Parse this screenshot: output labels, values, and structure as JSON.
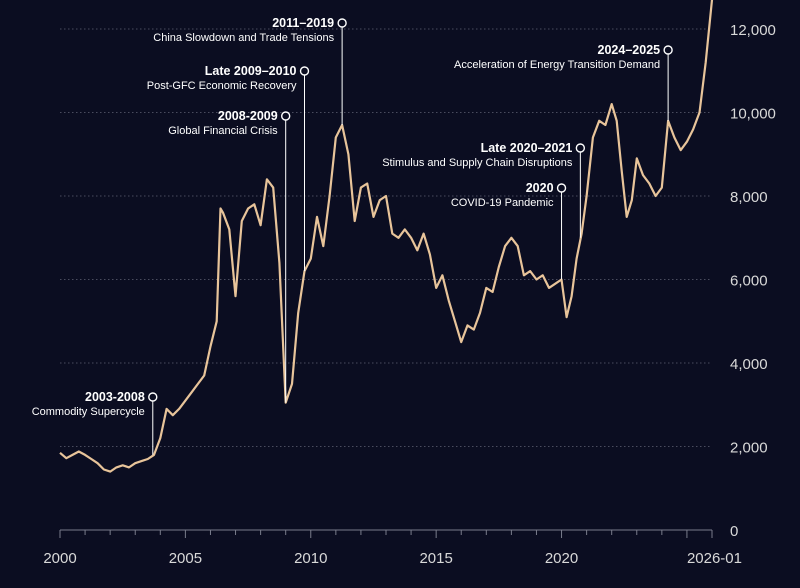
{
  "chart_data": {
    "type": "line",
    "title": "",
    "xlabel": "",
    "ylabel": "",
    "x_ticks": [
      "2000",
      "2005",
      "2010",
      "2015",
      "2020",
      "2026-01"
    ],
    "y_ticks": [
      "0",
      "2,000",
      "4,000",
      "6,000",
      "8,000",
      "10,000",
      "12,000"
    ],
    "xlim": [
      2000,
      2026.0
    ],
    "ylim": [
      0,
      12500
    ],
    "grid": true,
    "colors": {
      "background": "#0b0d21",
      "line": "#e8c49a",
      "grid": "#4a4c5e",
      "text": "#ffffff",
      "tick": "#d9d9d9"
    },
    "series": [
      {
        "points": [
          [
            2000.0,
            1850
          ],
          [
            2000.25,
            1720
          ],
          [
            2000.5,
            1800
          ],
          [
            2000.75,
            1880
          ],
          [
            2001.0,
            1800
          ],
          [
            2001.25,
            1700
          ],
          [
            2001.5,
            1600
          ],
          [
            2001.75,
            1450
          ],
          [
            2002.0,
            1400
          ],
          [
            2002.25,
            1500
          ],
          [
            2002.5,
            1550
          ],
          [
            2002.75,
            1500
          ],
          [
            2003.0,
            1600
          ],
          [
            2003.25,
            1650
          ],
          [
            2003.5,
            1700
          ],
          [
            2003.75,
            1800
          ],
          [
            2004.0,
            2200
          ],
          [
            2004.25,
            2900
          ],
          [
            2004.5,
            2750
          ],
          [
            2004.75,
            2900
          ],
          [
            2005.0,
            3100
          ],
          [
            2005.25,
            3300
          ],
          [
            2005.5,
            3500
          ],
          [
            2005.75,
            3700
          ],
          [
            2006.0,
            4400
          ],
          [
            2006.25,
            5000
          ],
          [
            2006.4,
            7700
          ],
          [
            2006.5,
            7600
          ],
          [
            2006.75,
            7200
          ],
          [
            2007.0,
            5600
          ],
          [
            2007.25,
            7400
          ],
          [
            2007.5,
            7700
          ],
          [
            2007.75,
            7800
          ],
          [
            2008.0,
            7300
          ],
          [
            2008.25,
            8400
          ],
          [
            2008.5,
            8200
          ],
          [
            2008.75,
            6400
          ],
          [
            2009.0,
            3050
          ],
          [
            2009.25,
            3500
          ],
          [
            2009.5,
            5200
          ],
          [
            2009.75,
            6200
          ],
          [
            2010.0,
            6500
          ],
          [
            2010.25,
            7500
          ],
          [
            2010.5,
            6800
          ],
          [
            2010.75,
            8000
          ],
          [
            2011.0,
            9400
          ],
          [
            2011.25,
            9700
          ],
          [
            2011.5,
            9000
          ],
          [
            2011.75,
            7400
          ],
          [
            2012.0,
            8200
          ],
          [
            2012.25,
            8300
          ],
          [
            2012.5,
            7500
          ],
          [
            2012.75,
            7900
          ],
          [
            2013.0,
            8000
          ],
          [
            2013.25,
            7100
          ],
          [
            2013.5,
            7000
          ],
          [
            2013.75,
            7200
          ],
          [
            2014.0,
            7000
          ],
          [
            2014.25,
            6700
          ],
          [
            2014.5,
            7100
          ],
          [
            2014.75,
            6600
          ],
          [
            2015.0,
            5800
          ],
          [
            2015.25,
            6100
          ],
          [
            2015.5,
            5500
          ],
          [
            2015.75,
            5000
          ],
          [
            2016.0,
            4500
          ],
          [
            2016.25,
            4900
          ],
          [
            2016.5,
            4800
          ],
          [
            2016.75,
            5200
          ],
          [
            2017.0,
            5800
          ],
          [
            2017.25,
            5700
          ],
          [
            2017.5,
            6300
          ],
          [
            2017.75,
            6800
          ],
          [
            2018.0,
            7000
          ],
          [
            2018.25,
            6800
          ],
          [
            2018.5,
            6100
          ],
          [
            2018.75,
            6200
          ],
          [
            2019.0,
            6000
          ],
          [
            2019.25,
            6100
          ],
          [
            2019.5,
            5800
          ],
          [
            2019.75,
            5900
          ],
          [
            2020.0,
            6000
          ],
          [
            2020.2,
            5100
          ],
          [
            2020.4,
            5600
          ],
          [
            2020.6,
            6500
          ],
          [
            2020.8,
            7100
          ],
          [
            2021.0,
            8000
          ],
          [
            2021.25,
            9400
          ],
          [
            2021.5,
            9800
          ],
          [
            2021.75,
            9700
          ],
          [
            2022.0,
            10200
          ],
          [
            2022.2,
            9800
          ],
          [
            2022.4,
            8600
          ],
          [
            2022.6,
            7500
          ],
          [
            2022.8,
            7900
          ],
          [
            2023.0,
            8900
          ],
          [
            2023.25,
            8500
          ],
          [
            2023.5,
            8300
          ],
          [
            2023.75,
            8000
          ],
          [
            2024.0,
            8200
          ],
          [
            2024.25,
            9800
          ],
          [
            2024.5,
            9400
          ],
          [
            2024.75,
            9100
          ],
          [
            2025.0,
            9300
          ],
          [
            2025.25,
            9600
          ],
          [
            2025.5,
            10000
          ],
          [
            2025.75,
            11200
          ],
          [
            2026.0,
            12700
          ]
        ]
      }
    ],
    "annotations": [
      {
        "period": "2003-2008",
        "label": "Commodity Supercycle",
        "x": 2003.7,
        "y": 1800
      },
      {
        "period": "2008-2009",
        "label": "Global Financial Crisis",
        "x": 2009.0,
        "y": 3050
      },
      {
        "period": "Late 2009–2010",
        "label": "Post-GFC Economic Recovery",
        "x": 2009.75,
        "y": 6200
      },
      {
        "period": "2011–2019",
        "label": "China Slowdown and Trade Tensions",
        "x": 2011.25,
        "y": 9700
      },
      {
        "period": "2020",
        "label": "COVID-19 Pandemic",
        "x": 2020.0,
        "y": 6000
      },
      {
        "period": "Late 2020–2021",
        "label": "Stimulus and Supply Chain Disruptions",
        "x": 2020.75,
        "y": 7000
      },
      {
        "period": "2024–2025",
        "label": "Acceleration of Energy Transition Demand",
        "x": 2024.25,
        "y": 9800
      }
    ]
  }
}
